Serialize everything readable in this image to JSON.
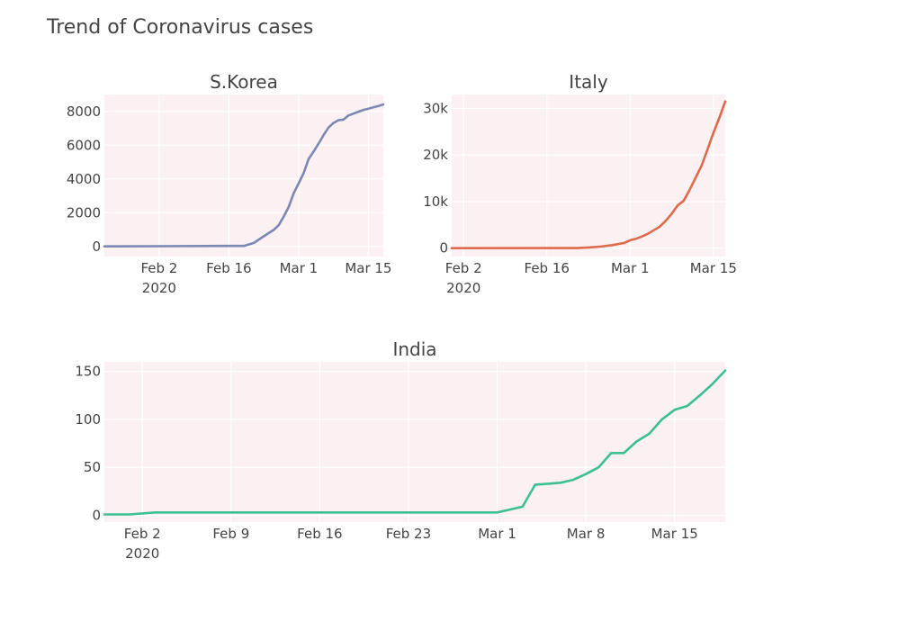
{
  "title": "Trend of Coronavirus cases",
  "chart_data": [
    {
      "type": "line",
      "title": "S.Korea",
      "xlabel": "",
      "ylabel": "",
      "x_range": [
        "2020-01-22",
        "2020-03-18"
      ],
      "ylim": [
        -600,
        9000
      ],
      "x_ticks": [
        {
          "date": "2020-02-02",
          "label": "Feb 2",
          "sublabel": "2020"
        },
        {
          "date": "2020-02-16",
          "label": "Feb 16",
          "sublabel": ""
        },
        {
          "date": "2020-03-01",
          "label": "Mar 1",
          "sublabel": ""
        },
        {
          "date": "2020-03-15",
          "label": "Mar 15",
          "sublabel": ""
        }
      ],
      "y_ticks": [
        {
          "value": 0,
          "label": "0"
        },
        {
          "value": 2000,
          "label": "2000"
        },
        {
          "value": 4000,
          "label": "4000"
        },
        {
          "value": 6000,
          "label": "6000"
        },
        {
          "value": 8000,
          "label": "8000"
        }
      ],
      "color": "#7a88b3",
      "grid": true,
      "series": [
        {
          "x": [
            "2020-01-22",
            "2020-02-02",
            "2020-02-16",
            "2020-02-19",
            "2020-02-21",
            "2020-02-23",
            "2020-02-25",
            "2020-02-26",
            "2020-02-27",
            "2020-02-28",
            "2020-02-29",
            "2020-03-01",
            "2020-03-02",
            "2020-03-03",
            "2020-03-04",
            "2020-03-05",
            "2020-03-06",
            "2020-03-07",
            "2020-03-08",
            "2020-03-09",
            "2020-03-10",
            "2020-03-11",
            "2020-03-12",
            "2020-03-13",
            "2020-03-14",
            "2020-03-15",
            "2020-03-16",
            "2020-03-17",
            "2020-03-18"
          ],
          "y": [
            1,
            15,
            29,
            31,
            204,
            602,
            977,
            1261,
            1766,
            2337,
            3150,
            3736,
            4335,
            5186,
            5621,
            6088,
            6593,
            7041,
            7314,
            7478,
            7513,
            7755,
            7869,
            7979,
            8086,
            8162,
            8236,
            8320,
            8413
          ]
        }
      ]
    },
    {
      "type": "line",
      "title": "Italy",
      "xlabel": "",
      "ylabel": "",
      "x_range": [
        "2020-01-31",
        "2020-03-17"
      ],
      "ylim": [
        -1800,
        33000
      ],
      "x_ticks": [
        {
          "date": "2020-02-02",
          "label": "Feb 2",
          "sublabel": "2020"
        },
        {
          "date": "2020-02-16",
          "label": "Feb 16",
          "sublabel": ""
        },
        {
          "date": "2020-03-01",
          "label": "Mar 1",
          "sublabel": ""
        },
        {
          "date": "2020-03-15",
          "label": "Mar 15",
          "sublabel": ""
        }
      ],
      "y_ticks": [
        {
          "value": 0,
          "label": "0"
        },
        {
          "value": 10000,
          "label": "10k"
        },
        {
          "value": 20000,
          "label": "20k"
        },
        {
          "value": 30000,
          "label": "30k"
        }
      ],
      "color": "#e06a4c",
      "grid": true,
      "series": [
        {
          "x": [
            "2020-01-31",
            "2020-02-21",
            "2020-02-23",
            "2020-02-25",
            "2020-02-27",
            "2020-02-29",
            "2020-03-01",
            "2020-03-02",
            "2020-03-03",
            "2020-03-04",
            "2020-03-05",
            "2020-03-06",
            "2020-03-07",
            "2020-03-08",
            "2020-03-09",
            "2020-03-10",
            "2020-03-11",
            "2020-03-12",
            "2020-03-13",
            "2020-03-14",
            "2020-03-15",
            "2020-03-16",
            "2020-03-17"
          ],
          "y": [
            2,
            20,
            155,
            322,
            655,
            1128,
            1694,
            2036,
            2502,
            3089,
            3858,
            4636,
            5883,
            7375,
            9172,
            10149,
            12462,
            15113,
            17660,
            21157,
            24747,
            27980,
            31506
          ]
        }
      ]
    },
    {
      "type": "line",
      "title": "India",
      "xlabel": "",
      "ylabel": "",
      "x_range": [
        "2020-01-30",
        "2020-03-19"
      ],
      "ylim": [
        -7,
        160
      ],
      "x_ticks": [
        {
          "date": "2020-02-02",
          "label": "Feb 2",
          "sublabel": "2020"
        },
        {
          "date": "2020-02-09",
          "label": "Feb 9",
          "sublabel": ""
        },
        {
          "date": "2020-02-16",
          "label": "Feb 16",
          "sublabel": ""
        },
        {
          "date": "2020-02-23",
          "label": "Feb 23",
          "sublabel": ""
        },
        {
          "date": "2020-03-01",
          "label": "Mar 1",
          "sublabel": ""
        },
        {
          "date": "2020-03-08",
          "label": "Mar 8",
          "sublabel": ""
        },
        {
          "date": "2020-03-15",
          "label": "Mar 15",
          "sublabel": ""
        }
      ],
      "y_ticks": [
        {
          "value": 0,
          "label": "0"
        },
        {
          "value": 50,
          "label": "50"
        },
        {
          "value": 100,
          "label": "100"
        },
        {
          "value": 150,
          "label": "150"
        }
      ],
      "color": "#3dbf94",
      "grid": true,
      "series": [
        {
          "x": [
            "2020-01-30",
            "2020-02-01",
            "2020-02-03",
            "2020-03-01",
            "2020-03-03",
            "2020-03-04",
            "2020-03-05",
            "2020-03-06",
            "2020-03-07",
            "2020-03-08",
            "2020-03-09",
            "2020-03-10",
            "2020-03-11",
            "2020-03-12",
            "2020-03-13",
            "2020-03-14",
            "2020-03-15",
            "2020-03-16",
            "2020-03-17",
            "2020-03-18",
            "2020-03-19"
          ],
          "y": [
            1,
            1,
            3,
            3,
            9,
            32,
            33,
            34,
            37,
            43,
            50,
            65,
            65,
            77,
            85,
            100,
            110,
            114,
            125,
            137,
            151
          ]
        }
      ]
    }
  ]
}
